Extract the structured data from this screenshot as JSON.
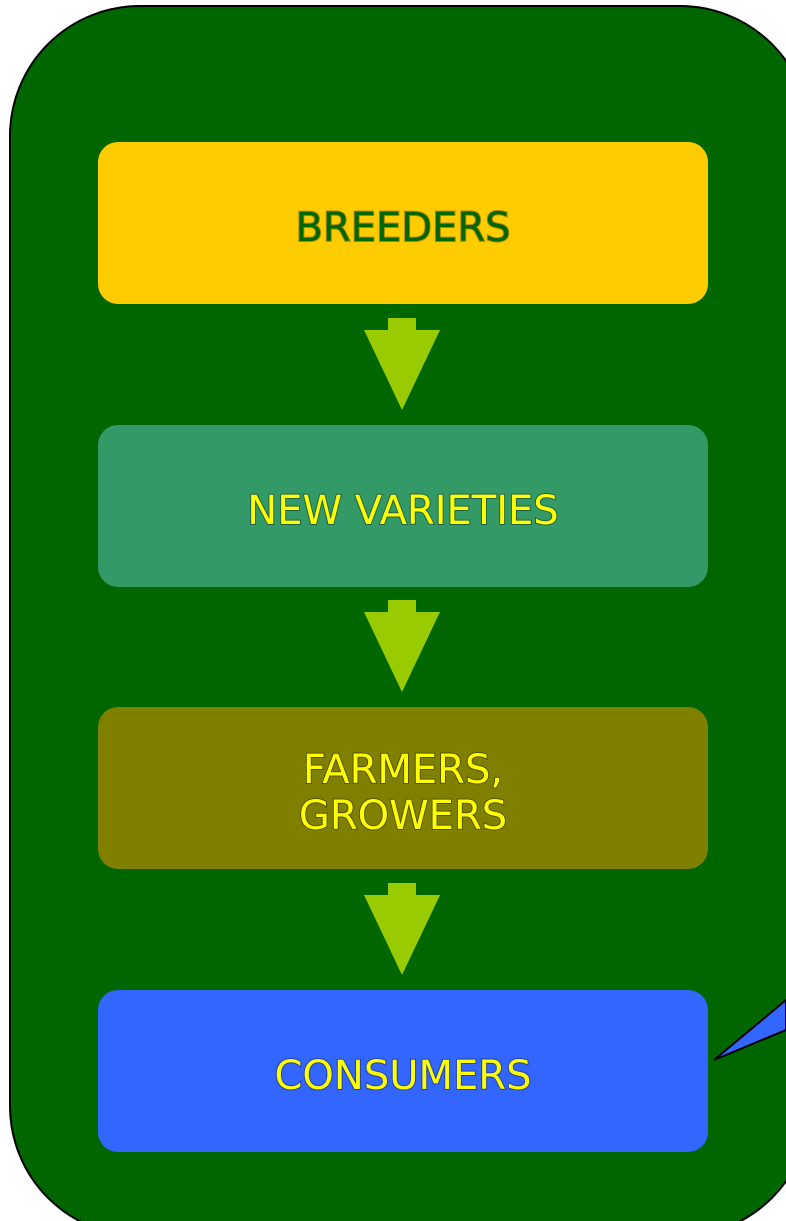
{
  "nodes": [
    {
      "label": "BREEDERS"
    },
    {
      "label": "NEW VARIETIES"
    },
    {
      "label": "FARMERS,\nGROWERS"
    },
    {
      "label": "CONSUMERS"
    }
  ]
}
